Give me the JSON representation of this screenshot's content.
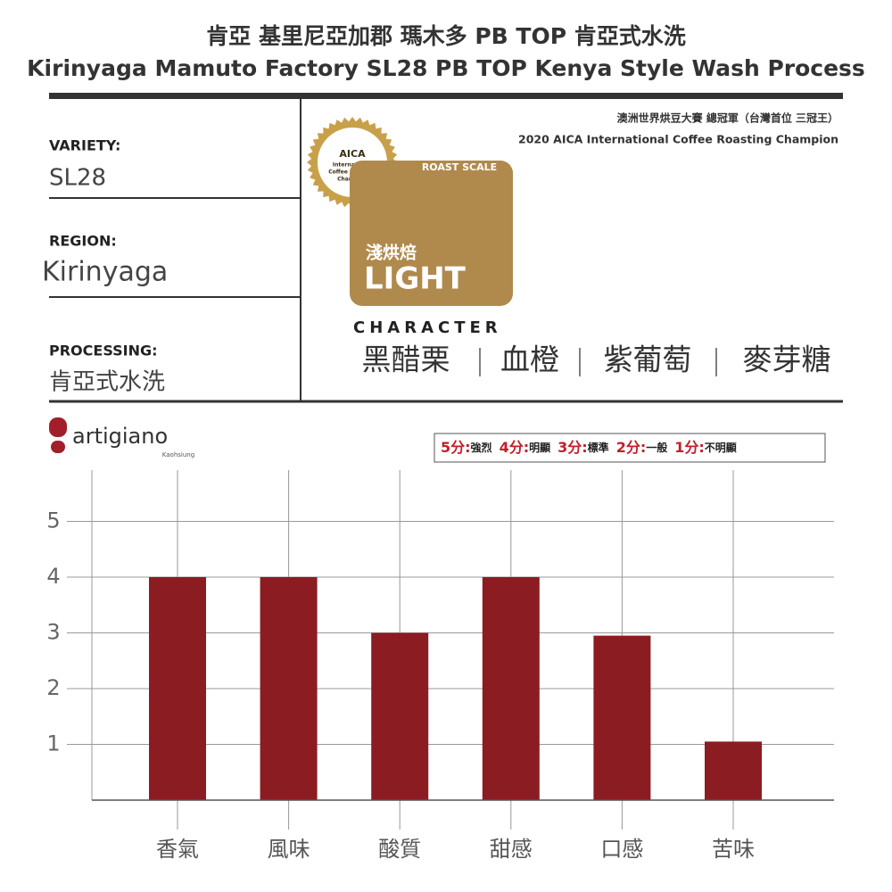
{
  "header": {
    "title_zh": "肯亞 基里尼亞加郡 瑪木多 PB TOP 肯亞式水洗",
    "title_en": "Kirinyaga Mamuto Factory SL28  PB TOP Kenya Style Wash Process"
  },
  "info": {
    "variety_label": "VARIETY:",
    "variety": "SL28",
    "region_label": "REGION:",
    "region": "Kirinyaga",
    "processing_label": "PROCESSING:",
    "processing": "肯亞式水洗"
  },
  "award": {
    "line1": "澳洲世界烘豆大賽 總冠軍（台灣首位 三冠王）",
    "line2": "2020 AICA International Coffee Roasting Champion",
    "medal_title": "AICA",
    "medal_lines": [
      "International",
      "Coffee Roasting",
      "Champion"
    ]
  },
  "roast": {
    "label": "ROAST SCALE",
    "level_zh": "淺烘焙",
    "level_en": "LIGHT"
  },
  "character": {
    "label": "CHARACTER",
    "notes": [
      "黑醋栗",
      "血橙",
      "紫葡萄",
      "麥芽糖"
    ]
  },
  "brand": {
    "name": "artigiano",
    "city": "Kaohsiung"
  },
  "scale": [
    {
      "score": "5分:",
      "desc": "強烈"
    },
    {
      "score": "4分:",
      "desc": "明顯"
    },
    {
      "score": "3分:",
      "desc": "標準"
    },
    {
      "score": "2分:",
      "desc": "一般"
    },
    {
      "score": "1分:",
      "desc": "不明顯"
    }
  ],
  "chart_data": {
    "type": "bar",
    "categories": [
      "香氣",
      "風味",
      "酸質",
      "甜感",
      "口感",
      "苦味"
    ],
    "values": [
      4,
      4,
      3,
      4,
      2.95,
      1.05
    ],
    "color": "#8b1c22",
    "ylim": [
      0,
      6
    ],
    "yticks": [
      1,
      2,
      3,
      4,
      5
    ],
    "grid": true
  }
}
